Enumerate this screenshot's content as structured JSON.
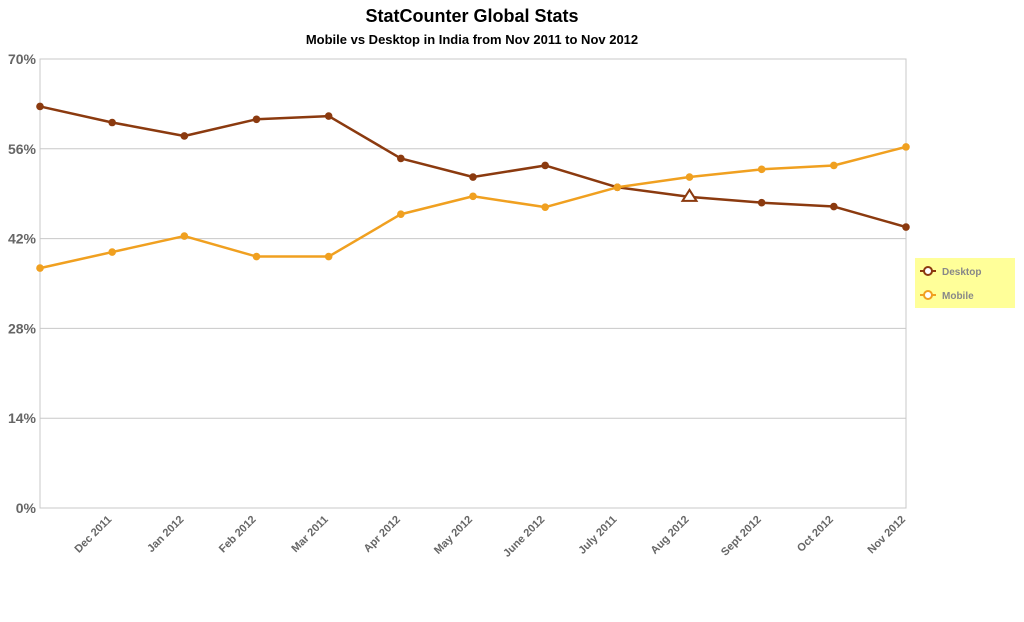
{
  "chart_data": {
    "type": "line",
    "title": "StatCounter Global Stats",
    "subtitle": "Mobile vs Desktop in India from Nov 2011 to Nov 2012",
    "xlabel": "",
    "ylabel": "",
    "ylim": [
      0,
      70
    ],
    "yticks": [
      "0%",
      "14%",
      "28%",
      "42%",
      "56%",
      "70%"
    ],
    "categories": [
      "Nov 2011",
      "Dec 2011",
      "Jan 2012",
      "Feb 2012",
      "Mar 2011",
      "Apr 2012",
      "May 2012",
      "June 2012",
      "July 2011",
      "Aug 2012",
      "Sept 2012",
      "Oct 2012",
      "Nov 2012"
    ],
    "category_labels": [
      "",
      "Dec 2011",
      "Jan 2012",
      "Feb 2012",
      "Mar 2011",
      "Apr 2012",
      "May 2012",
      "June 2012",
      "July 2011",
      "Aug 2012",
      "Sept 2012",
      "Oct 2012",
      "Nov 2012"
    ],
    "grid": true,
    "legend_position": "right",
    "marker_annotation": {
      "series": "Desktop",
      "category": "Aug 2012",
      "shape": "triangle"
    },
    "series": [
      {
        "name": "Desktop",
        "color": "#8b3a0f",
        "values": [
          62.6,
          60.1,
          58.0,
          60.6,
          61.1,
          54.5,
          51.6,
          53.4,
          50.0,
          48.5,
          47.6,
          47.0,
          43.8
        ]
      },
      {
        "name": "Mobile",
        "color": "#f0a020",
        "values": [
          37.4,
          39.9,
          42.4,
          39.2,
          39.2,
          45.8,
          48.6,
          46.9,
          50.0,
          51.6,
          52.8,
          53.4,
          56.3
        ]
      }
    ]
  },
  "legend": {
    "background": "#ffff99"
  }
}
